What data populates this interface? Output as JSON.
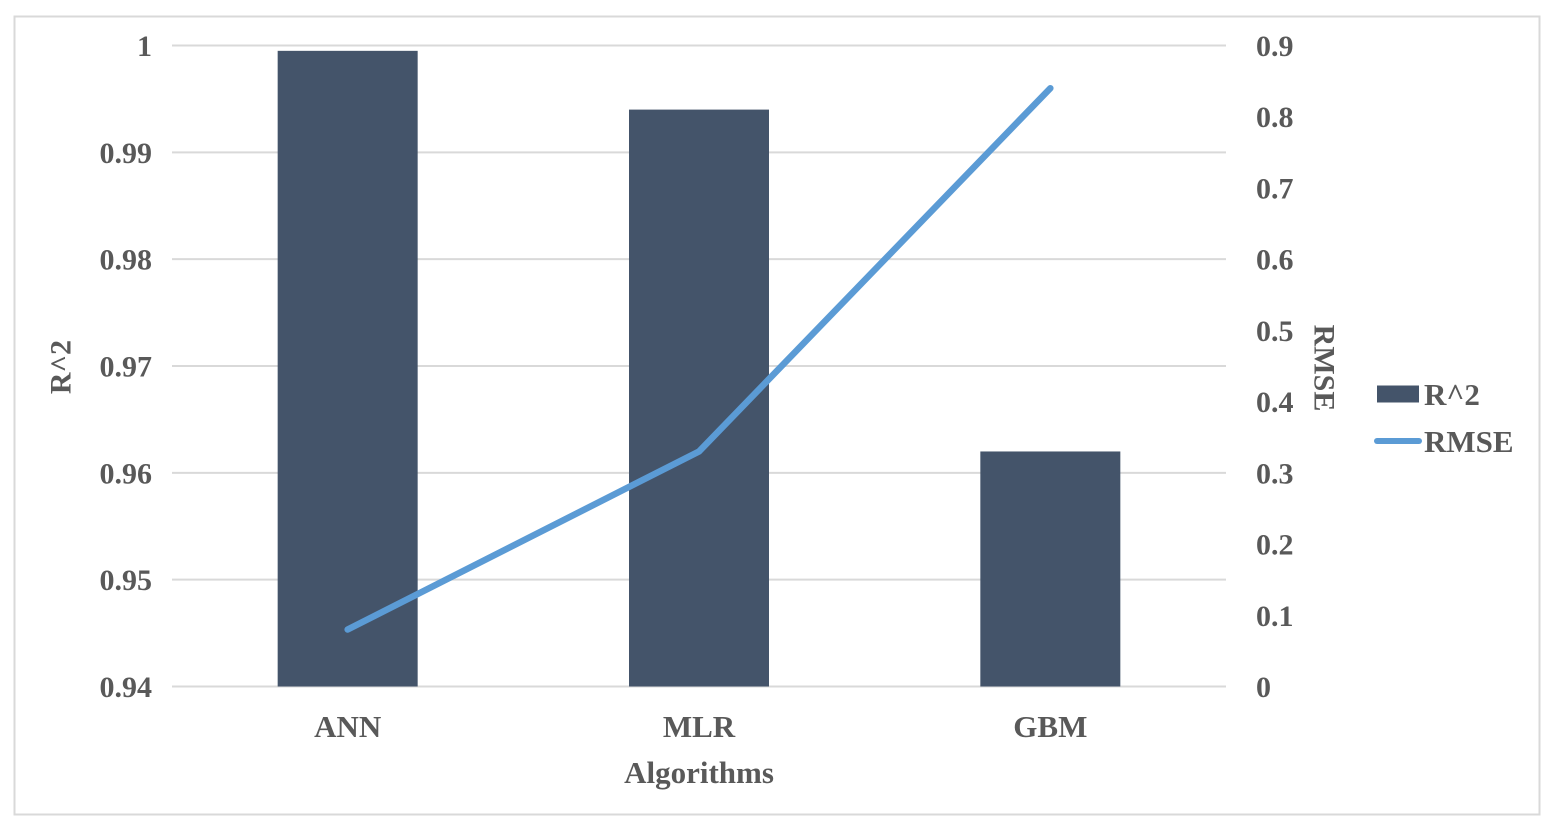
{
  "figure": {
    "background": "#FFFFFF",
    "frame_border_color": "#D9D9D9"
  },
  "chart_data": {
    "type": "combo-bar-line",
    "categories": [
      "ANN",
      "MLR",
      "GBM"
    ],
    "series": [
      {
        "name": "R^2",
        "type": "bar",
        "axis": "left",
        "values": [
          0.9995,
          0.994,
          0.962
        ],
        "color": "#44546A"
      },
      {
        "name": "RMSE",
        "type": "line",
        "axis": "right",
        "values": [
          0.08,
          0.33,
          0.84
        ],
        "color": "#5B9BD5"
      }
    ],
    "xlabel": "Algorithms",
    "left_axis": {
      "label": "R^2",
      "min": 0.94,
      "max": 1.0,
      "tick_step": 0.01,
      "tick_labels": [
        "1",
        "0.99",
        "0.98",
        "0.97",
        "0.96",
        "0.95",
        "0.94"
      ]
    },
    "right_axis": {
      "label": "RMSE",
      "min": 0,
      "max": 0.9,
      "tick_step": 0.1,
      "tick_labels": [
        "0.9",
        "0.8",
        "0.7",
        "0.6",
        "0.5",
        "0.4",
        "0.3",
        "0.2",
        "0.1",
        "0"
      ]
    },
    "legend": {
      "position": "right",
      "entries": [
        {
          "label": "R^2",
          "swatch": "bar"
        },
        {
          "label": "RMSE",
          "swatch": "line"
        }
      ]
    },
    "grid": true,
    "styles": {
      "text_color": "#595959",
      "gridline_color": "#D9D9D9",
      "axis_line_color": "#D9D9D9"
    }
  }
}
